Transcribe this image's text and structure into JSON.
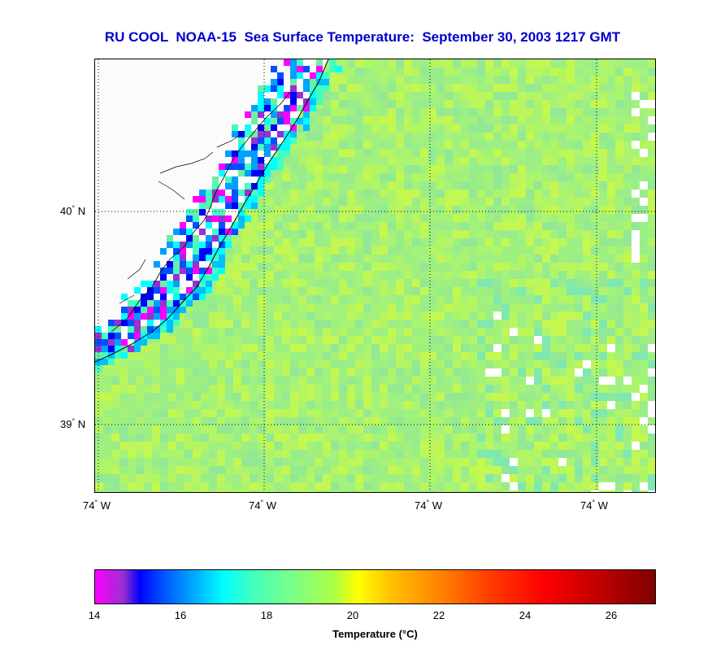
{
  "title": "RU COOL  NOAA-15  Sea Surface Temperature:  September 30, 2003 1217 GMT",
  "map": {
    "lat_labels": [
      "40",
      "39"
    ],
    "lat_suffix": "N",
    "lon_labels": [
      "74",
      "74",
      "74",
      "74"
    ],
    "lon_suffix": "W",
    "degree_symbol": "°"
  },
  "colorbar": {
    "ticks": [
      "14",
      "16",
      "18",
      "20",
      "22",
      "24",
      "26"
    ],
    "label": "Temperature (°C)",
    "range": [
      14,
      27
    ]
  },
  "colors": {
    "title": "#0000cc",
    "ocean_base": "#a6f27a",
    "land": "#fbfbf9"
  }
}
